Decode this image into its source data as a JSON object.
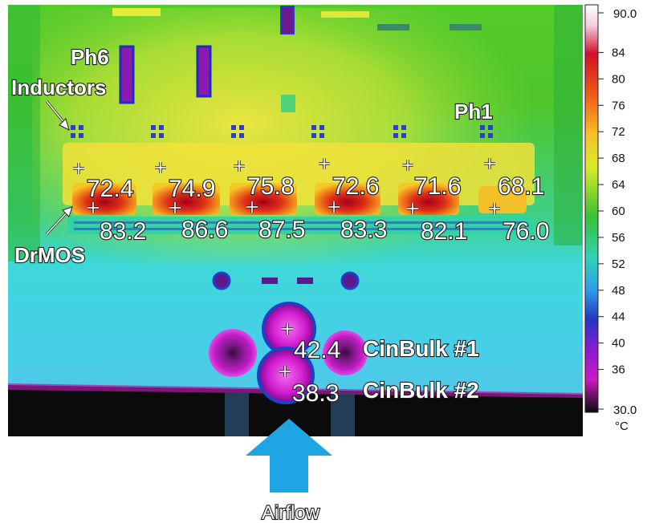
{
  "labels": {
    "ph6": "Ph6",
    "inductors": "Inductors",
    "ph1": "Ph1",
    "drmos": "DrMOS",
    "airflow": "Airflow",
    "cin1": "CinBulk #1",
    "cin2": "CinBulk #2"
  },
  "inductor_readings": [
    "72.4",
    "74.9",
    "75.8",
    "72.6",
    "71.6",
    "68.1"
  ],
  "drmos_readings": [
    "83.2",
    "86.6",
    "87.5",
    "83.3",
    "82.1",
    "76.0"
  ],
  "cin_readings": [
    "42.4",
    "38.3"
  ],
  "scale": {
    "max": "90.0",
    "ticks": [
      "84",
      "80",
      "76",
      "72",
      "68",
      "64",
      "60",
      "56",
      "52",
      "48",
      "44",
      "40",
      "36"
    ],
    "min": "30.0",
    "unit": "°C"
  },
  "colors": {
    "hot": "#b0001a",
    "warm": "#f08a1a",
    "yellow": "#f2ee2a",
    "green": "#2fc23a",
    "cyan": "#2fd6e6",
    "blue": "#1e3fc8",
    "magenta": "#d21cd0",
    "cold": "#0a0a0a",
    "arrow": "#1ea6e4"
  }
}
